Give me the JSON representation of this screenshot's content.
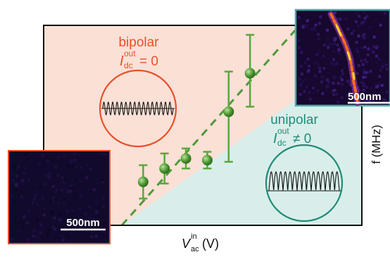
{
  "colors": {
    "bipolar_region": "#fbe0d6",
    "unipolar_region": "#d9eeea",
    "bipolar_text": "#e8502a",
    "unipolar_text": "#1f8c78",
    "data_points": "#5aa83a",
    "dashed_line": "#4e9a3a",
    "frame": "#111111",
    "inset_right_border": "#3fb0a6",
    "inset_left_border": "#e8502a"
  },
  "labels": {
    "bipolar": "bipolar",
    "bipolar_current": "= 0",
    "unipolar": "unipolar",
    "unipolar_current": "≠ 0",
    "current_symbol": "I",
    "current_sub": "dc",
    "current_sup": "out",
    "scale_bar_left": "500nm",
    "scale_bar_right": "500nm"
  },
  "chart_data": {
    "type": "scatter",
    "xlabel": {
      "symbol": "V",
      "sub": "ac",
      "sup": "in",
      "unit": "(V)"
    },
    "ylabel": "f (MHz)",
    "x_ticks": [],
    "y_ticks": [],
    "points": [
      {
        "x": 1.0,
        "y": 1.3,
        "err_low": 0.5,
        "err_high": 0.5
      },
      {
        "x": 2.0,
        "y": 1.7,
        "err_low": 0.45,
        "err_high": 0.45
      },
      {
        "x": 3.0,
        "y": 2.0,
        "err_low": 0.3,
        "err_high": 0.3
      },
      {
        "x": 4.0,
        "y": 1.95,
        "err_low": 0.25,
        "err_high": 0.25
      },
      {
        "x": 5.0,
        "y": 3.4,
        "err_low": 1.5,
        "err_high": 1.2
      },
      {
        "x": 6.0,
        "y": 4.55,
        "err_low": 1.0,
        "err_high": 1.15
      }
    ],
    "boundary_line": {
      "from": [
        0.0,
        0.0
      ],
      "to": [
        8.2,
        5.9
      ],
      "style": "dashed"
    }
  }
}
